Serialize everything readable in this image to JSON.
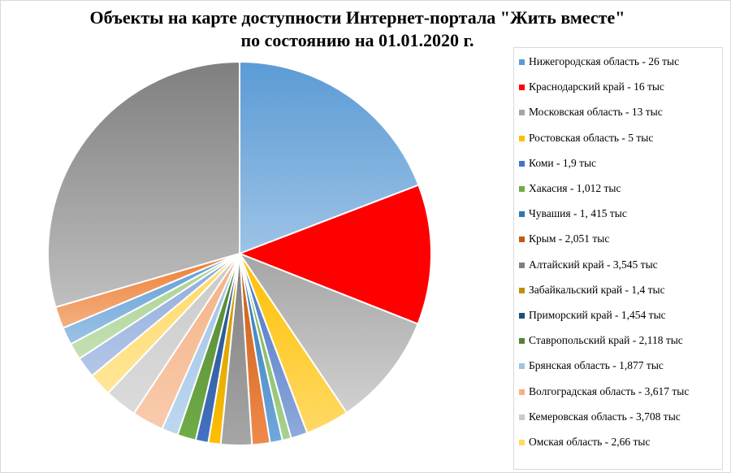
{
  "chart_data": {
    "type": "pie",
    "title_line1": "Объекты на карте доступности Интернет-портала \"Жить  вместе\"",
    "title_line2": "по состоянию на 01.01.2020 г.",
    "start_angle_deg": 0,
    "slices": [
      {
        "label": "Нижегородская область  - 26 тыс",
        "value": 26,
        "color": "#5b9bd5",
        "color_light": "#9dc3e6"
      },
      {
        "label": "Краснодарский край - 16 тыс",
        "value": 16,
        "color": "#ff0000",
        "color_light": "#ff0000"
      },
      {
        "label": "Московская область - 13 тыс",
        "value": 13,
        "color": "#a5a5a5",
        "color_light": "#d0d0d0"
      },
      {
        "label": "Ростовская область - 5 тыс",
        "value": 5,
        "color": "#ffc000",
        "color_light": "#ffd966"
      },
      {
        "label": "Коми - 1,9 тыс",
        "value": 1.9,
        "color": "#4472c4",
        "color_light": "#8faadc"
      },
      {
        "label": "Хакасия - 1,012 тыс",
        "value": 1.012,
        "color": "#70ad47",
        "color_light": "#a9d18e"
      },
      {
        "label": "Чувашия  - 1, 415 тыс",
        "value": 1.415,
        "color": "#2e75b6",
        "color_light": "#6fa8dc"
      },
      {
        "label": "Крым - 2,051 тыс",
        "value": 2.051,
        "color": "#c55a11",
        "color_light": "#f08a4b"
      },
      {
        "label": "Алтайский край - 3,545 тыс",
        "value": 3.545,
        "color": "#7f7f7f",
        "color_light": "#a6a6a6"
      },
      {
        "label": "Забайкальский край - 1,4 тыс",
        "value": 1.4,
        "color": "#bf9000",
        "color_light": "#ffc000"
      },
      {
        "label": "Приморский край - 1,454 тыс",
        "value": 1.454,
        "color": "#1f4e79",
        "color_light": "#4472c4"
      },
      {
        "label": "Ставропольский край - 2,118 тыс",
        "value": 2.118,
        "color": "#548235",
        "color_light": "#70ad47"
      },
      {
        "label": "Брянская область - 1,877 тыс",
        "value": 1.877,
        "color": "#9dc3e6",
        "color_light": "#bdd7ee"
      },
      {
        "label": "Волгоградская область - 3,617 тыс",
        "value": 3.617,
        "color": "#f4b183",
        "color_light": "#f8cbad"
      },
      {
        "label": "Кемеровская область - 3,708 тыс",
        "value": 3.708,
        "color": "#c9c9c9",
        "color_light": "#dbdbdb"
      },
      {
        "label": "Омская область - 2,66 тыс",
        "value": 2.66,
        "color": "#ffd966",
        "color_light": "#ffe699"
      },
      {
        "value": 2.4,
        "color": "#8faadc",
        "color_light": "#b4c7e7"
      },
      {
        "value": 1.9,
        "color": "#a9d18e",
        "color_light": "#c5e0b4"
      },
      {
        "value": 2.0,
        "color": "#5b9bd5",
        "color_light": "#9dc3e6"
      },
      {
        "value": 2.5,
        "color": "#ed7d31",
        "color_light": "#f4b183"
      },
      {
        "value": 40,
        "color": "#7f7f7f",
        "color_light": "#bfbfbf"
      }
    ]
  }
}
